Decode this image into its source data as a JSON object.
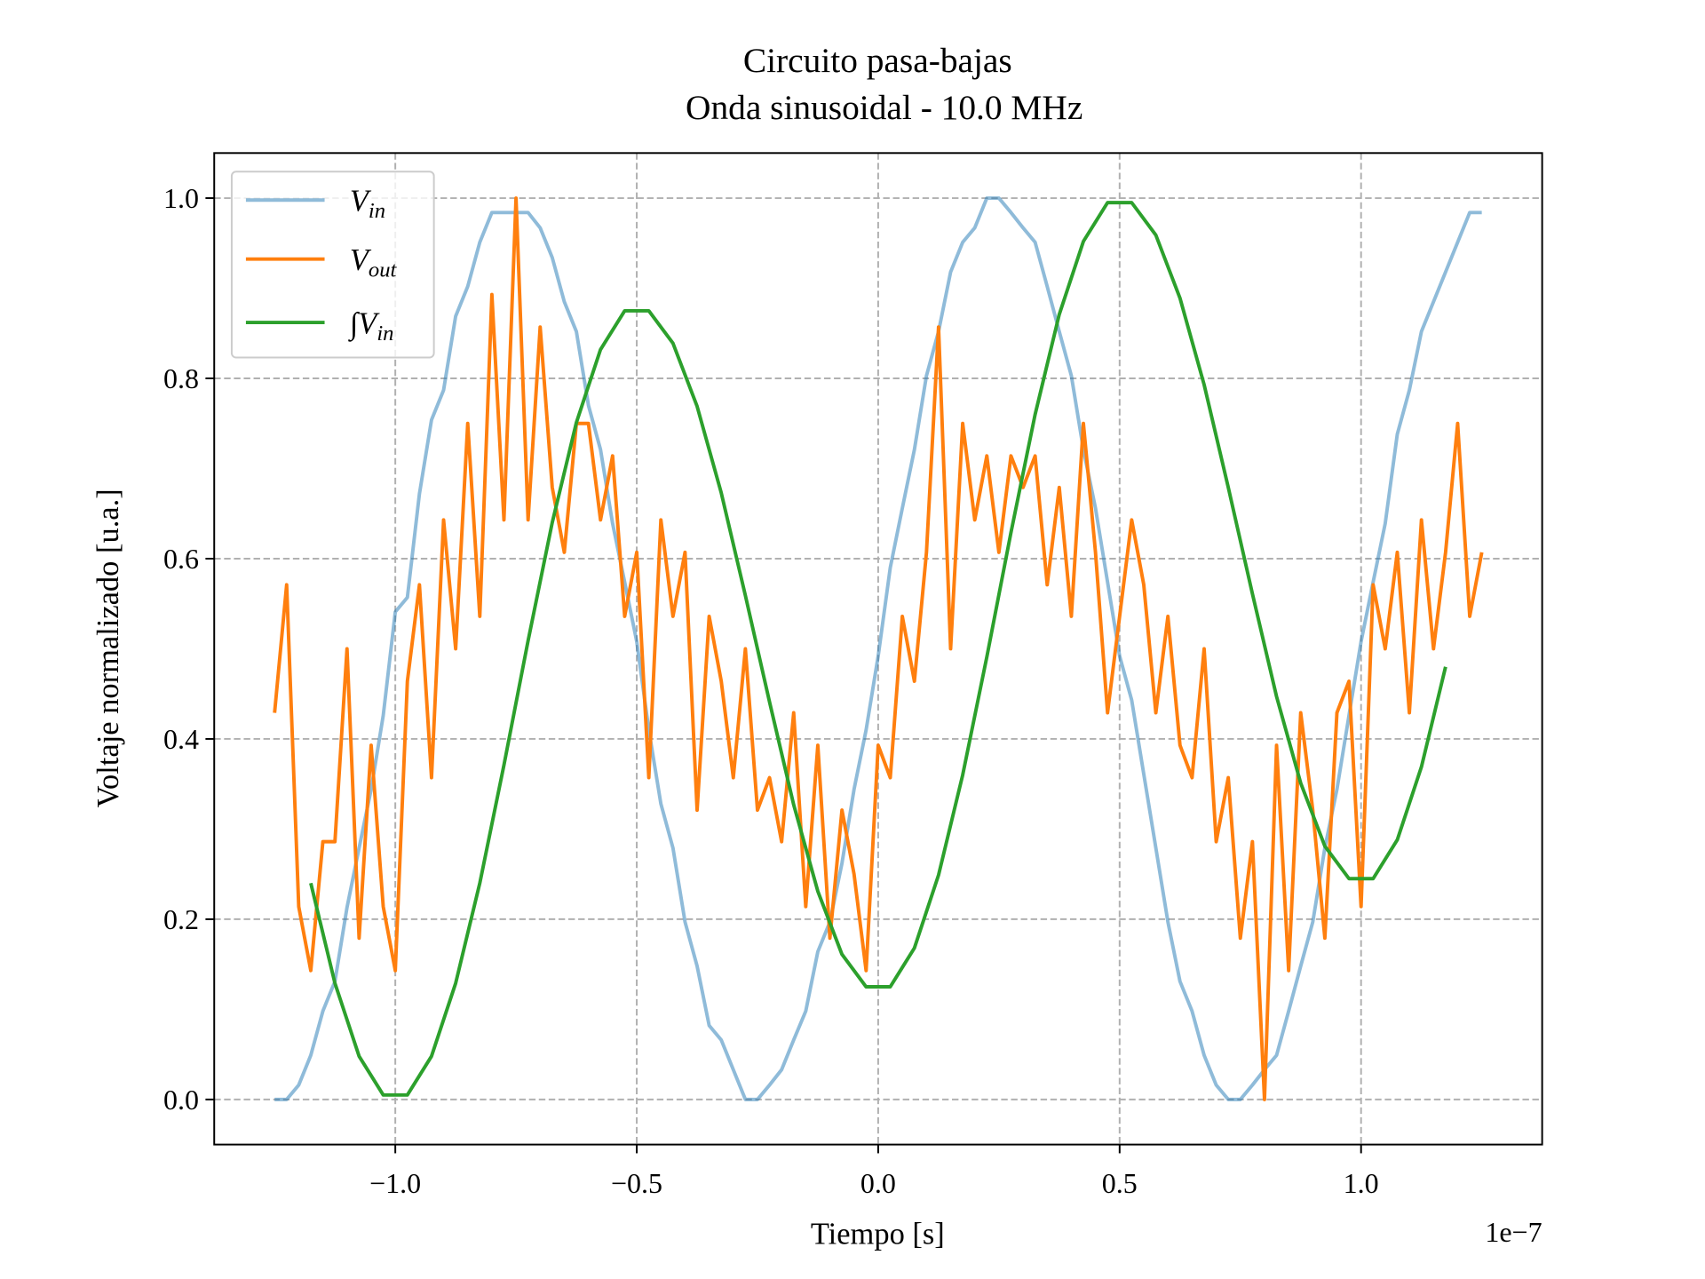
{
  "chart_data": {
    "type": "line",
    "title": "Circuito pasa-bajas",
    "subtitle": "Onda sinusoidal - 10.0 MHz",
    "x_label": "Tiempo [s]",
    "y_label": "Voltaje normalizado [u.a.]",
    "x_offset_label": "1e−7",
    "xlim": [
      -1.375,
      1.375
    ],
    "ylim": [
      -0.05,
      1.05
    ],
    "xticks": [
      {
        "value": -1,
        "label": "−1.0"
      },
      {
        "value": -0.5,
        "label": "−0.5"
      },
      {
        "value": 0,
        "label": "0.0"
      },
      0.5,
      {
        "value": 1,
        "label": "1.0"
      }
    ],
    "yticks": [
      {
        "value": 0,
        "label": "0.0"
      },
      0.2,
      0.4,
      0.6,
      0.8,
      {
        "value": 1,
        "label": "1.0"
      }
    ],
    "grid": true,
    "legend": "upper left",
    "series": [
      {
        "name": "Vin",
        "color": "#1f77b4",
        "opacity": 0.5,
        "x": [
          -1.25,
          -1.225,
          -1.2,
          -1.175,
          -1.15,
          -1.125,
          -1.1,
          -1.075,
          -1.05,
          -1.025,
          -1.0,
          -0.975,
          -0.95,
          -0.925,
          -0.9,
          -0.875,
          -0.85,
          -0.825,
          -0.8,
          -0.775,
          -0.75,
          -0.725,
          -0.7,
          -0.675,
          -0.65,
          -0.625,
          -0.6,
          -0.575,
          -0.55,
          -0.525,
          -0.5,
          -0.475,
          -0.45,
          -0.425,
          -0.4,
          -0.375,
          -0.35,
          -0.325,
          -0.3,
          -0.275,
          -0.25,
          -0.225,
          -0.2,
          -0.175,
          -0.15,
          -0.125,
          -0.1,
          -0.075,
          -0.05,
          -0.025,
          0.0,
          0.025,
          0.05,
          0.075,
          0.1,
          0.125,
          0.15,
          0.175,
          0.2,
          0.225,
          0.25,
          0.275,
          0.3,
          0.325,
          0.35,
          0.375,
          0.4,
          0.425,
          0.45,
          0.475,
          0.5,
          0.525,
          0.55,
          0.575,
          0.6,
          0.625,
          0.65,
          0.675,
          0.7,
          0.725,
          0.75,
          0.775,
          0.8,
          0.825,
          0.85,
          0.875,
          0.9,
          0.925,
          0.95,
          0.975,
          1.0,
          1.025,
          1.05,
          1.075,
          1.1,
          1.125,
          1.15,
          1.175,
          1.2,
          1.225,
          1.25
        ],
        "values": [
          0,
          0,
          0.016,
          0.049,
          0.098,
          0.131,
          0.213,
          0.279,
          0.344,
          0.426,
          0.541,
          0.557,
          0.672,
          0.754,
          0.787,
          0.869,
          0.902,
          0.951,
          0.984,
          0.984,
          0.984,
          0.984,
          0.967,
          0.934,
          0.885,
          0.852,
          0.77,
          0.721,
          0.639,
          0.574,
          0.508,
          0.41,
          0.328,
          0.279,
          0.197,
          0.148,
          0.082,
          0.066,
          0.033,
          0,
          0,
          0.016,
          0.033,
          0.066,
          0.098,
          0.164,
          0.197,
          0.262,
          0.344,
          0.41,
          0.492,
          0.59,
          0.656,
          0.721,
          0.803,
          0.852,
          0.918,
          0.951,
          0.967,
          1.0,
          1.0,
          0.984,
          0.967,
          0.951,
          0.902,
          0.852,
          0.803,
          0.721,
          0.656,
          0.574,
          0.492,
          0.443,
          0.361,
          0.279,
          0.197,
          0.131,
          0.098,
          0.049,
          0.016,
          0,
          0,
          0.016,
          0.033,
          0.049,
          0.098,
          0.148,
          0.197,
          0.279,
          0.344,
          0.426,
          0.508,
          0.574,
          0.639,
          0.738,
          0.787,
          0.852,
          0.885,
          0.918,
          0.951,
          0.984,
          0.984
        ]
      },
      {
        "name": "Vout",
        "color": "#ff7f0e",
        "opacity": 1,
        "x": [
          -1.25,
          -1.225,
          -1.2,
          -1.175,
          -1.15,
          -1.125,
          -1.1,
          -1.075,
          -1.05,
          -1.025,
          -1.0,
          -0.975,
          -0.95,
          -0.925,
          -0.9,
          -0.875,
          -0.85,
          -0.825,
          -0.8,
          -0.775,
          -0.75,
          -0.725,
          -0.7,
          -0.675,
          -0.65,
          -0.625,
          -0.6,
          -0.575,
          -0.55,
          -0.525,
          -0.5,
          -0.475,
          -0.45,
          -0.425,
          -0.4,
          -0.375,
          -0.35,
          -0.325,
          -0.3,
          -0.275,
          -0.25,
          -0.225,
          -0.2,
          -0.175,
          -0.15,
          -0.125,
          -0.1,
          -0.075,
          -0.05,
          -0.025,
          0.0,
          0.025,
          0.05,
          0.075,
          0.1,
          0.125,
          0.15,
          0.175,
          0.2,
          0.225,
          0.25,
          0.275,
          0.3,
          0.325,
          0.35,
          0.375,
          0.4,
          0.425,
          0.45,
          0.475,
          0.5,
          0.525,
          0.55,
          0.575,
          0.6,
          0.625,
          0.65,
          0.675,
          0.7,
          0.725,
          0.75,
          0.775,
          0.8,
          0.825,
          0.85,
          0.875,
          0.9,
          0.925,
          0.95,
          0.975,
          1.0,
          1.025,
          1.05,
          1.075,
          1.1,
          1.125,
          1.15,
          1.175,
          1.2,
          1.225,
          1.25
        ],
        "values": [
          0.429,
          0.571,
          0.214,
          0.143,
          0.286,
          0.286,
          0.5,
          0.179,
          0.393,
          0.214,
          0.143,
          0.464,
          0.571,
          0.357,
          0.643,
          0.5,
          0.75,
          0.536,
          0.893,
          0.643,
          1.0,
          0.643,
          0.857,
          0.679,
          0.607,
          0.75,
          0.75,
          0.643,
          0.714,
          0.536,
          0.607,
          0.357,
          0.643,
          0.536,
          0.607,
          0.321,
          0.536,
          0.464,
          0.357,
          0.5,
          0.321,
          0.357,
          0.286,
          0.429,
          0.214,
          0.393,
          0.179,
          0.321,
          0.25,
          0.143,
          0.393,
          0.357,
          0.536,
          0.464,
          0.607,
          0.857,
          0.5,
          0.75,
          0.643,
          0.714,
          0.607,
          0.714,
          0.679,
          0.714,
          0.571,
          0.679,
          0.536,
          0.75,
          0.607,
          0.429,
          0.536,
          0.643,
          0.571,
          0.429,
          0.536,
          0.393,
          0.357,
          0.5,
          0.286,
          0.357,
          0.179,
          0.286,
          0.0,
          0.393,
          0.143,
          0.429,
          0.321,
          0.179,
          0.429,
          0.464,
          0.214,
          0.571,
          0.5,
          0.607,
          0.429,
          0.643,
          0.5,
          0.607,
          0.75,
          0.536,
          0.607
        ]
      },
      {
        "name": "∫Vin",
        "color": "#2ca02c",
        "opacity": 1,
        "x": [
          -1.175,
          -1.125,
          -1.075,
          -1.025,
          -0.975,
          -0.925,
          -0.875,
          -0.825,
          -0.775,
          -0.725,
          -0.675,
          -0.625,
          -0.575,
          -0.525,
          -0.475,
          -0.425,
          -0.375,
          -0.325,
          -0.275,
          -0.225,
          -0.175,
          -0.125,
          -0.075,
          -0.025,
          0.025,
          0.075,
          0.125,
          0.175,
          0.225,
          0.275,
          0.325,
          0.375,
          0.425,
          0.475,
          0.525,
          0.575,
          0.625,
          0.675,
          0.725,
          0.775,
          0.825,
          0.875,
          0.925,
          0.975,
          1.025,
          1.075,
          1.125,
          1.175
        ],
        "values": [
          0.24,
          0.129,
          0.048,
          0.005,
          0.005,
          0.048,
          0.129,
          0.24,
          0.371,
          0.509,
          0.64,
          0.751,
          0.832,
          0.875,
          0.875,
          0.839,
          0.769,
          0.673,
          0.559,
          0.441,
          0.327,
          0.231,
          0.161,
          0.125,
          0.125,
          0.168,
          0.249,
          0.36,
          0.491,
          0.629,
          0.76,
          0.871,
          0.952,
          0.995,
          0.995,
          0.959,
          0.889,
          0.793,
          0.679,
          0.561,
          0.447,
          0.351,
          0.281,
          0.245,
          0.245,
          0.288,
          0.369,
          0.48
        ]
      }
    ]
  }
}
